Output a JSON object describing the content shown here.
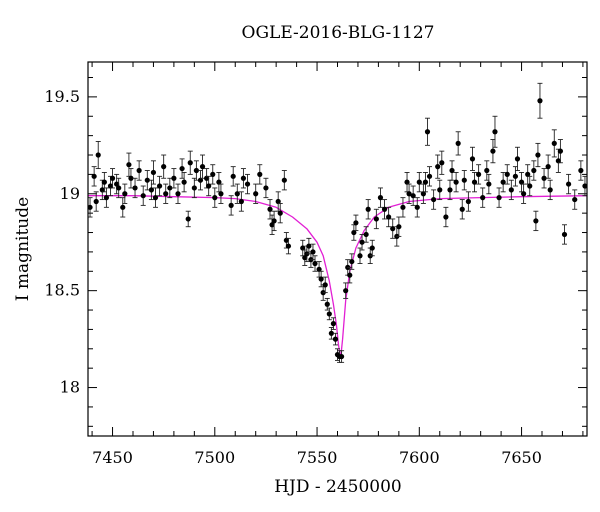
{
  "chart_data": {
    "type": "scatter",
    "title": "OGLE-2016-BLG-1127",
    "xlabel": "HJD - 2450000",
    "ylabel": "I magnitude",
    "xlim": [
      7438,
      7682
    ],
    "ylim": [
      19.68,
      17.75
    ],
    "y_inverted": true,
    "xticks": [
      "7450",
      "7500",
      "7550",
      "7600",
      "7650"
    ],
    "yticks": [
      "18",
      "18.5",
      "19",
      "19.5"
    ],
    "grid": false,
    "model_color": "#e21fd4",
    "point_color": "#000000",
    "model": {
      "name": "",
      "baseline": 18.985,
      "peak_time": 7561.5,
      "peak_mag": 18.15,
      "x": [
        7438,
        7460,
        7480,
        7500,
        7510,
        7520,
        7530,
        7538,
        7545,
        7550,
        7553,
        7556,
        7558,
        7559.5,
        7560.5,
        7561.5,
        7562.5,
        7564,
        7566,
        7569,
        7573,
        7578,
        7585,
        7595,
        7610,
        7630,
        7650,
        7682
      ],
      "y": [
        18.99,
        18.99,
        18.985,
        18.98,
        18.975,
        18.96,
        18.93,
        18.88,
        18.82,
        18.75,
        18.68,
        18.55,
        18.43,
        18.32,
        18.22,
        18.15,
        18.25,
        18.45,
        18.6,
        18.72,
        18.81,
        18.88,
        18.93,
        18.96,
        18.975,
        18.98,
        18.985,
        18.99
      ]
    },
    "points": [
      {
        "x": 7439,
        "y": 18.93,
        "err": 0.05
      },
      {
        "x": 7441,
        "y": 19.09,
        "err": 0.05
      },
      {
        "x": 7442,
        "y": 18.96,
        "err": 0.05
      },
      {
        "x": 7443,
        "y": 19.2,
        "err": 0.07
      },
      {
        "x": 7445,
        "y": 19.02,
        "err": 0.05
      },
      {
        "x": 7446,
        "y": 19.06,
        "err": 0.05
      },
      {
        "x": 7447,
        "y": 18.98,
        "err": 0.05
      },
      {
        "x": 7449,
        "y": 19.04,
        "err": 0.05
      },
      {
        "x": 7450,
        "y": 19.08,
        "err": 0.05
      },
      {
        "x": 7452,
        "y": 19.05,
        "err": 0.05
      },
      {
        "x": 7453,
        "y": 19.03,
        "err": 0.05
      },
      {
        "x": 7455,
        "y": 18.93,
        "err": 0.05
      },
      {
        "x": 7456,
        "y": 19.0,
        "err": 0.05
      },
      {
        "x": 7458,
        "y": 19.15,
        "err": 0.06
      },
      {
        "x": 7459,
        "y": 19.08,
        "err": 0.05
      },
      {
        "x": 7461,
        "y": 19.03,
        "err": 0.05
      },
      {
        "x": 7463,
        "y": 19.12,
        "err": 0.05
      },
      {
        "x": 7465,
        "y": 18.99,
        "err": 0.05
      },
      {
        "x": 7467,
        "y": 19.07,
        "err": 0.05
      },
      {
        "x": 7469,
        "y": 19.02,
        "err": 0.05
      },
      {
        "x": 7470,
        "y": 19.11,
        "err": 0.06
      },
      {
        "x": 7471,
        "y": 18.98,
        "err": 0.05
      },
      {
        "x": 7473,
        "y": 19.04,
        "err": 0.05
      },
      {
        "x": 7475,
        "y": 19.14,
        "err": 0.06
      },
      {
        "x": 7476,
        "y": 19.0,
        "err": 0.05
      },
      {
        "x": 7478,
        "y": 19.03,
        "err": 0.05
      },
      {
        "x": 7480,
        "y": 19.08,
        "err": 0.05
      },
      {
        "x": 7482,
        "y": 19.0,
        "err": 0.05
      },
      {
        "x": 7484,
        "y": 19.13,
        "err": 0.05
      },
      {
        "x": 7485,
        "y": 19.06,
        "err": 0.05
      },
      {
        "x": 7487,
        "y": 18.87,
        "err": 0.04
      },
      {
        "x": 7488,
        "y": 19.16,
        "err": 0.06
      },
      {
        "x": 7490,
        "y": 19.03,
        "err": 0.05
      },
      {
        "x": 7491,
        "y": 19.12,
        "err": 0.05
      },
      {
        "x": 7493,
        "y": 19.07,
        "err": 0.05
      },
      {
        "x": 7494,
        "y": 19.14,
        "err": 0.06
      },
      {
        "x": 7496,
        "y": 19.08,
        "err": 0.05
      },
      {
        "x": 7497,
        "y": 19.04,
        "err": 0.05
      },
      {
        "x": 7499,
        "y": 19.1,
        "err": 0.05
      },
      {
        "x": 7500,
        "y": 18.98,
        "err": 0.05
      },
      {
        "x": 7502,
        "y": 19.06,
        "err": 0.05
      },
      {
        "x": 7503,
        "y": 19.0,
        "err": 0.05
      },
      {
        "x": 7508,
        "y": 18.94,
        "err": 0.05
      },
      {
        "x": 7509,
        "y": 19.09,
        "err": 0.05
      },
      {
        "x": 7511,
        "y": 19.0,
        "err": 0.05
      },
      {
        "x": 7513,
        "y": 18.96,
        "err": 0.05
      },
      {
        "x": 7514,
        "y": 19.08,
        "err": 0.05
      },
      {
        "x": 7516,
        "y": 19.05,
        "err": 0.05
      },
      {
        "x": 7520,
        "y": 19.0,
        "err": 0.05
      },
      {
        "x": 7522,
        "y": 19.1,
        "err": 0.05
      },
      {
        "x": 7525,
        "y": 19.03,
        "err": 0.05
      },
      {
        "x": 7527,
        "y": 18.92,
        "err": 0.05
      },
      {
        "x": 7528,
        "y": 18.84,
        "err": 0.05
      },
      {
        "x": 7529,
        "y": 18.86,
        "err": 0.05
      },
      {
        "x": 7531,
        "y": 18.96,
        "err": 0.05
      },
      {
        "x": 7532,
        "y": 18.9,
        "err": 0.05
      },
      {
        "x": 7534,
        "y": 19.07,
        "err": 0.05
      },
      {
        "x": 7535,
        "y": 18.76,
        "err": 0.04
      },
      {
        "x": 7536,
        "y": 18.73,
        "err": 0.04
      },
      {
        "x": 7543,
        "y": 18.72,
        "err": 0.04
      },
      {
        "x": 7544,
        "y": 18.67,
        "err": 0.04
      },
      {
        "x": 7545,
        "y": 18.69,
        "err": 0.04
      },
      {
        "x": 7546,
        "y": 18.73,
        "err": 0.04
      },
      {
        "x": 7547,
        "y": 18.66,
        "err": 0.04
      },
      {
        "x": 7548,
        "y": 18.7,
        "err": 0.04
      },
      {
        "x": 7549,
        "y": 18.64,
        "err": 0.04
      },
      {
        "x": 7551,
        "y": 18.61,
        "err": 0.04
      },
      {
        "x": 7552,
        "y": 18.56,
        "err": 0.04
      },
      {
        "x": 7553,
        "y": 18.49,
        "err": 0.04
      },
      {
        "x": 7554,
        "y": 18.53,
        "err": 0.04
      },
      {
        "x": 7555,
        "y": 18.43,
        "err": 0.03
      },
      {
        "x": 7556,
        "y": 18.38,
        "err": 0.03
      },
      {
        "x": 7557,
        "y": 18.28,
        "err": 0.03
      },
      {
        "x": 7558,
        "y": 18.33,
        "err": 0.03
      },
      {
        "x": 7559,
        "y": 18.25,
        "err": 0.03
      },
      {
        "x": 7560,
        "y": 18.17,
        "err": 0.03
      },
      {
        "x": 7561,
        "y": 18.16,
        "err": 0.03
      },
      {
        "x": 7562,
        "y": 18.16,
        "err": 0.03
      },
      {
        "x": 7564,
        "y": 18.5,
        "err": 0.04
      },
      {
        "x": 7565,
        "y": 18.62,
        "err": 0.04
      },
      {
        "x": 7566,
        "y": 18.58,
        "err": 0.04
      },
      {
        "x": 7567,
        "y": 18.65,
        "err": 0.04
      },
      {
        "x": 7568,
        "y": 18.8,
        "err": 0.04
      },
      {
        "x": 7569,
        "y": 18.85,
        "err": 0.04
      },
      {
        "x": 7571,
        "y": 18.68,
        "err": 0.04
      },
      {
        "x": 7572,
        "y": 18.75,
        "err": 0.04
      },
      {
        "x": 7574,
        "y": 18.79,
        "err": 0.04
      },
      {
        "x": 7575,
        "y": 18.92,
        "err": 0.05
      },
      {
        "x": 7576,
        "y": 18.68,
        "err": 0.04
      },
      {
        "x": 7577,
        "y": 18.72,
        "err": 0.04
      },
      {
        "x": 7579,
        "y": 18.87,
        "err": 0.05
      },
      {
        "x": 7581,
        "y": 18.98,
        "err": 0.05
      },
      {
        "x": 7583,
        "y": 18.92,
        "err": 0.05
      },
      {
        "x": 7585,
        "y": 18.88,
        "err": 0.05
      },
      {
        "x": 7587,
        "y": 18.82,
        "err": 0.05
      },
      {
        "x": 7589,
        "y": 18.78,
        "err": 0.05
      },
      {
        "x": 7590,
        "y": 18.83,
        "err": 0.05
      },
      {
        "x": 7592,
        "y": 18.93,
        "err": 0.05
      },
      {
        "x": 7594,
        "y": 19.06,
        "err": 0.05
      },
      {
        "x": 7595,
        "y": 19.0,
        "err": 0.05
      },
      {
        "x": 7597,
        "y": 18.99,
        "err": 0.05
      },
      {
        "x": 7599,
        "y": 18.93,
        "err": 0.05
      },
      {
        "x": 7600,
        "y": 19.06,
        "err": 0.05
      },
      {
        "x": 7602,
        "y": 19.0,
        "err": 0.05
      },
      {
        "x": 7603,
        "y": 19.06,
        "err": 0.05
      },
      {
        "x": 7604,
        "y": 19.32,
        "err": 0.07
      },
      {
        "x": 7605,
        "y": 19.09,
        "err": 0.05
      },
      {
        "x": 7607,
        "y": 18.97,
        "err": 0.05
      },
      {
        "x": 7609,
        "y": 19.14,
        "err": 0.06
      },
      {
        "x": 7610,
        "y": 19.02,
        "err": 0.05
      },
      {
        "x": 7611,
        "y": 19.16,
        "err": 0.06
      },
      {
        "x": 7613,
        "y": 18.88,
        "err": 0.05
      },
      {
        "x": 7615,
        "y": 19.02,
        "err": 0.05
      },
      {
        "x": 7616,
        "y": 19.12,
        "err": 0.05
      },
      {
        "x": 7618,
        "y": 19.06,
        "err": 0.05
      },
      {
        "x": 7619,
        "y": 19.26,
        "err": 0.06
      },
      {
        "x": 7621,
        "y": 18.92,
        "err": 0.05
      },
      {
        "x": 7622,
        "y": 19.07,
        "err": 0.05
      },
      {
        "x": 7624,
        "y": 18.96,
        "err": 0.05
      },
      {
        "x": 7626,
        "y": 19.18,
        "err": 0.06
      },
      {
        "x": 7627,
        "y": 19.06,
        "err": 0.05
      },
      {
        "x": 7629,
        "y": 19.1,
        "err": 0.05
      },
      {
        "x": 7631,
        "y": 18.98,
        "err": 0.05
      },
      {
        "x": 7633,
        "y": 19.12,
        "err": 0.05
      },
      {
        "x": 7634,
        "y": 19.05,
        "err": 0.05
      },
      {
        "x": 7636,
        "y": 19.22,
        "err": 0.06
      },
      {
        "x": 7637,
        "y": 19.32,
        "err": 0.08
      },
      {
        "x": 7639,
        "y": 18.98,
        "err": 0.05
      },
      {
        "x": 7641,
        "y": 19.06,
        "err": 0.05
      },
      {
        "x": 7643,
        "y": 19.1,
        "err": 0.05
      },
      {
        "x": 7645,
        "y": 19.02,
        "err": 0.05
      },
      {
        "x": 7647,
        "y": 19.09,
        "err": 0.05
      },
      {
        "x": 7648,
        "y": 19.18,
        "err": 0.06
      },
      {
        "x": 7650,
        "y": 19.06,
        "err": 0.05
      },
      {
        "x": 7651,
        "y": 19.0,
        "err": 0.05
      },
      {
        "x": 7653,
        "y": 19.1,
        "err": 0.05
      },
      {
        "x": 7654,
        "y": 19.04,
        "err": 0.05
      },
      {
        "x": 7656,
        "y": 19.12,
        "err": 0.05
      },
      {
        "x": 7657,
        "y": 18.86,
        "err": 0.05
      },
      {
        "x": 7658,
        "y": 19.2,
        "err": 0.06
      },
      {
        "x": 7659,
        "y": 19.48,
        "err": 0.09
      },
      {
        "x": 7661,
        "y": 19.08,
        "err": 0.05
      },
      {
        "x": 7663,
        "y": 19.14,
        "err": 0.06
      },
      {
        "x": 7664,
        "y": 19.02,
        "err": 0.05
      },
      {
        "x": 7666,
        "y": 19.26,
        "err": 0.07
      },
      {
        "x": 7668,
        "y": 19.17,
        "err": 0.06
      },
      {
        "x": 7669,
        "y": 19.22,
        "err": 0.06
      },
      {
        "x": 7671,
        "y": 18.79,
        "err": 0.05
      },
      {
        "x": 7673,
        "y": 19.05,
        "err": 0.05
      },
      {
        "x": 7676,
        "y": 18.97,
        "err": 0.05
      },
      {
        "x": 7679,
        "y": 19.12,
        "err": 0.05
      },
      {
        "x": 7681,
        "y": 19.04,
        "err": 0.05
      }
    ]
  }
}
